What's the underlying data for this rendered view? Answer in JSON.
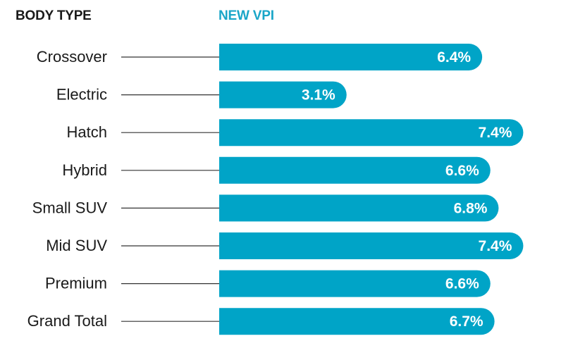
{
  "chart_data": {
    "type": "bar",
    "orientation": "horizontal",
    "category_header": "BODY TYPE",
    "value_header": "NEW VPI",
    "categories": [
      "Crossover",
      "Electric",
      "Hatch",
      "Hybrid",
      "Small SUV",
      "Mid SUV",
      "Premium",
      "Grand Total"
    ],
    "values": [
      6.4,
      3.1,
      7.4,
      6.6,
      6.8,
      7.4,
      6.6,
      6.7
    ],
    "value_labels": [
      "6.4%",
      "3.1%",
      "7.4%",
      "6.6%",
      "6.8%",
      "7.4%",
      "6.6%",
      "6.7%"
    ],
    "unit": "%",
    "grid": false,
    "legend": "none",
    "colors": {
      "bar": "#00a4c7",
      "value_header": "#1aa6c8",
      "category_header": "#1a1a1a",
      "category_text": "#1a1a1a",
      "leader_line": "#333333",
      "bar_label": "#ffffff"
    }
  }
}
